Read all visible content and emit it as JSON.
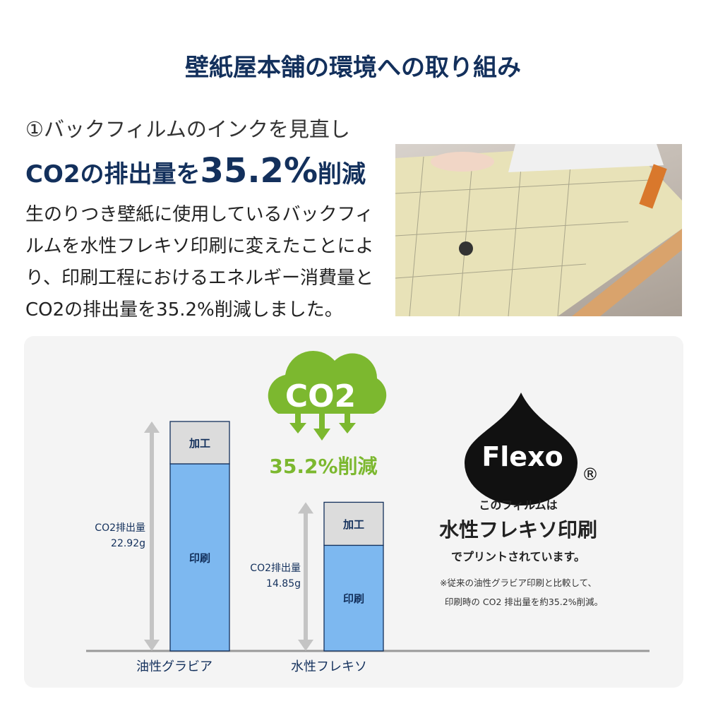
{
  "title": "壁紙屋本舗の環境への取り組み",
  "section": {
    "heading": "①バックフィルムのインクを見直し",
    "headline_pre": "CO2の排出量を",
    "headline_value": "35.2%",
    "headline_post": "削減",
    "body": "生のりつき壁紙に使用しているバックフィルムを水性フレキソ印刷に変えたことにより、印刷工程におけるエネルギー消費量とCO2の排出量を35.2%削減しました。"
  },
  "cloud": {
    "label": "CO2",
    "reduction": "35.2%削減"
  },
  "flexo": {
    "logo": "Flexo",
    "registered": "®",
    "line1": "このフィルムは",
    "line2": "水性フレキソ印刷",
    "line3": "でプリントされています。",
    "note1": "※従来の油性グラビア印刷と比較して、",
    "note2": "印刷時の CO2 排出量を約35.2%削減。"
  },
  "colors": {
    "navy": "#13305c",
    "green": "#7cb82f",
    "print": "#7db8f0",
    "process": "#dcdcdc",
    "arrow": "#c4c4c4"
  },
  "chart_data": {
    "type": "bar",
    "stacked": true,
    "categories": [
      "油性グラビア",
      "水性フレキソ"
    ],
    "series": [
      {
        "name": "印刷",
        "values": [
          18.69,
          10.55
        ]
      },
      {
        "name": "加工",
        "values": [
          4.23,
          4.3
        ]
      }
    ],
    "totals": [
      22.92,
      14.85
    ],
    "total_labels": [
      {
        "line1": "CO2排出量",
        "line2": "22.92g"
      },
      {
        "line1": "CO2排出量",
        "line2": "14.85g"
      }
    ],
    "ylim": [
      0,
      22.92
    ],
    "grid": false
  }
}
